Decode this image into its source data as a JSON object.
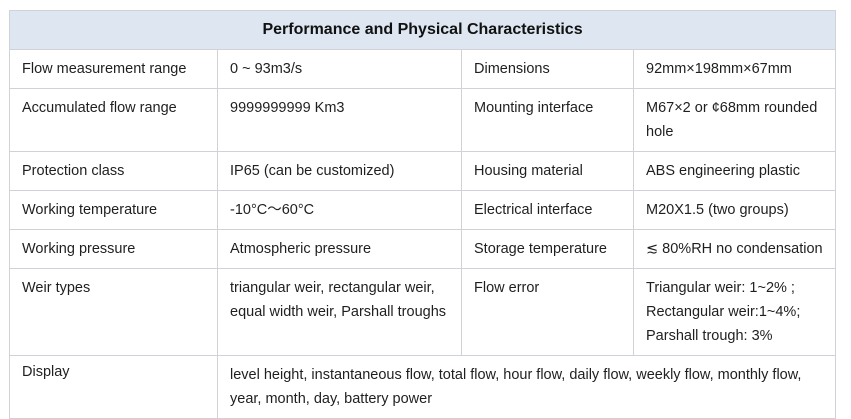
{
  "title": "Performance and Physical Characteristics",
  "rows": [
    {
      "label1": "Flow measurement range",
      "value1": "0 ~ 93m3/s",
      "label2": "Dimensions",
      "value2": "92mm×198mm×67mm"
    },
    {
      "label1": "Accumulated flow range",
      "value1": "9999999999 Km3",
      "label2": "Mounting interface",
      "value2": "M67×2 or ¢68mm rounded hole"
    },
    {
      "label1": "Protection class",
      "value1": "IP65 (can be customized)",
      "label2": "Housing material",
      "value2": "ABS engineering plastic"
    },
    {
      "label1": "Working temperature",
      "value1": "-10°C〜60°C",
      "label2": "Electrical interface",
      "value2": "M20X1.5 (two groups)"
    },
    {
      "label1": "Working pressure",
      "value1": "Atmospheric pressure",
      "label2": "Storage temperature",
      "value2": "≲ 80%RH no condensation"
    },
    {
      "label1": "Weir types",
      "value1": "triangular weir, rectangular weir, equal width weir, Parshall troughs",
      "label2": "Flow error",
      "value2_lines": [
        "Triangular weir: 1~2% ;",
        "Rectangular weir:1~4%;",
        "Parshall trough: 3%"
      ]
    }
  ],
  "display_row": {
    "label": "Display",
    "value": "level height, instantaneous flow, total flow, hour flow, daily flow, weekly flow, monthly flow, year, month, day, battery power"
  }
}
